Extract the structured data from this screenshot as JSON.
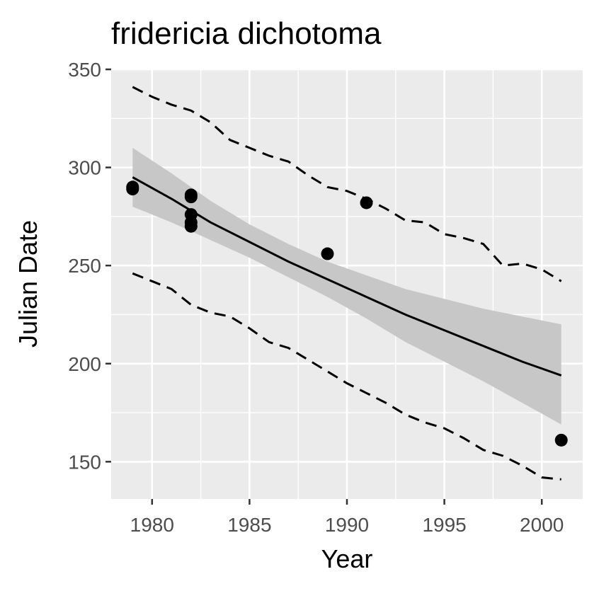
{
  "chart_data": {
    "type": "scatter",
    "title": "fridericia dichotoma",
    "xlabel": "Year",
    "ylabel": "Julian Date",
    "xlim": [
      1977.9,
      2002.1
    ],
    "ylim": [
      131,
      350
    ],
    "x_ticks": [
      1980,
      1985,
      1990,
      1995,
      2000
    ],
    "y_ticks": [
      150,
      200,
      250,
      300,
      350
    ],
    "x_minor": [
      1982.5,
      1987.5,
      1992.5,
      1997.5
    ],
    "y_minor": [
      175,
      225,
      275,
      325
    ],
    "grid": true,
    "legend": "none",
    "colors": {
      "panel": "#ebebeb",
      "grid": "#ffffff",
      "points": "#000000",
      "ribbon": "#c7c7c7",
      "line": "#000000"
    },
    "points": [
      {
        "x": 1979,
        "y": 289
      },
      {
        "x": 1979,
        "y": 290
      },
      {
        "x": 1982,
        "y": 270
      },
      {
        "x": 1982,
        "y": 272
      },
      {
        "x": 1982,
        "y": 276
      },
      {
        "x": 1982,
        "y": 285
      },
      {
        "x": 1982,
        "y": 286
      },
      {
        "x": 1989,
        "y": 256
      },
      {
        "x": 1991,
        "y": 282
      },
      {
        "x": 2001,
        "y": 161
      }
    ],
    "fit": {
      "x": [
        1979,
        1981,
        1983,
        1985,
        1987,
        1989,
        1991,
        1993,
        1995,
        1997,
        1999,
        2001
      ],
      "y": [
        295,
        284,
        272,
        262,
        252,
        243,
        234,
        225,
        217,
        209,
        201,
        194
      ],
      "lower": [
        280,
        272,
        263,
        254,
        244,
        234,
        223,
        211,
        201,
        191,
        180,
        169
      ],
      "upper": [
        310,
        297,
        283,
        271,
        261,
        252,
        245,
        238,
        233,
        228,
        224,
        220
      ]
    },
    "upper_dashed": {
      "x": [
        1979,
        1980,
        1981,
        1982,
        1983,
        1984,
        1985,
        1986,
        1987,
        1988,
        1989,
        1990,
        1991,
        1992,
        1993,
        1994,
        1995,
        1996,
        1997,
        1998,
        1999,
        2000,
        2001
      ],
      "y": [
        341,
        336,
        332,
        329,
        323,
        314,
        310,
        306,
        303,
        296,
        290,
        288,
        284,
        279,
        273,
        272,
        266,
        264,
        261,
        250,
        251,
        248,
        242
      ]
    },
    "lower_dashed": {
      "x": [
        1979,
        1980,
        1981,
        1982,
        1983,
        1984,
        1985,
        1986,
        1987,
        1988,
        1989,
        1990,
        1991,
        1992,
        1993,
        1994,
        1995,
        1996,
        1997,
        1998,
        1999,
        2000,
        2001
      ],
      "y": [
        246,
        242,
        238,
        230,
        226,
        224,
        218,
        211,
        208,
        202,
        196,
        190,
        185,
        180,
        174,
        170,
        167,
        162,
        156,
        153,
        148,
        142,
        141
      ]
    }
  }
}
